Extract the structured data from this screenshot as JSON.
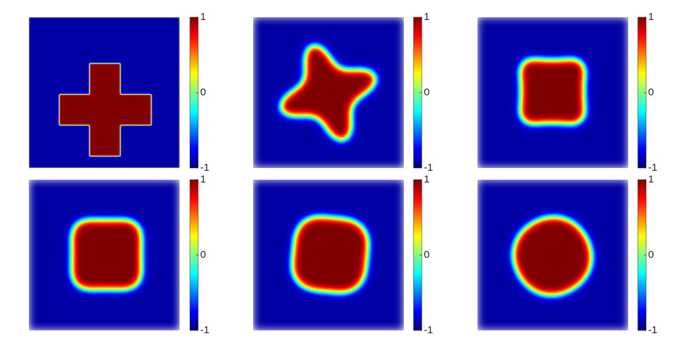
{
  "chart_data": [
    {
      "type": "image",
      "clim": [
        -1,
        1
      ],
      "cticks": [
        -1,
        0,
        1
      ]
    },
    {
      "type": "image",
      "clim": [
        -1,
        1
      ],
      "cticks": [
        -1,
        0,
        1
      ]
    },
    {
      "type": "image",
      "clim": [
        -1,
        1
      ],
      "cticks": [
        -1,
        0,
        1
      ]
    },
    {
      "type": "image",
      "clim": [
        -1,
        1
      ],
      "cticks": [
        -1,
        0,
        1
      ]
    },
    {
      "type": "image",
      "clim": [
        -1,
        1
      ],
      "cticks": [
        -1,
        0,
        1
      ]
    },
    {
      "type": "image",
      "clim": [
        -1,
        1
      ],
      "cticks": [
        -1,
        0,
        1
      ]
    }
  ]
}
